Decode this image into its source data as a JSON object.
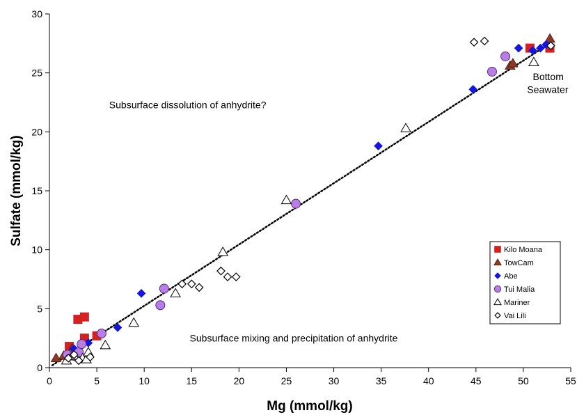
{
  "chart_data": {
    "type": "scatter",
    "xlabel": "Mg (mmol/kg)",
    "ylabel": "Sulfate (mmol/kg)",
    "xlim": [
      0,
      55
    ],
    "ylim": [
      0,
      30
    ],
    "x_ticks": [
      0,
      5,
      10,
      15,
      20,
      25,
      30,
      35,
      40,
      45,
      50,
      55
    ],
    "y_ticks": [
      0,
      5,
      10,
      15,
      20,
      25,
      30
    ],
    "grid": false,
    "legend_position": "bottom-right",
    "annotations": [
      {
        "text": "Subsurface dissolution of anhydrite?",
        "x": 6.3,
        "y": 22.0
      },
      {
        "text": "Subsurface mixing and precipitation of anhydrite",
        "x": 14.8,
        "y": 2.2
      },
      {
        "text": "Bottom",
        "x": 51.0,
        "y": 24.4
      },
      {
        "text": "Seawater",
        "x": 50.4,
        "y": 23.3
      }
    ],
    "trendline": {
      "style": "dotted",
      "x": [
        0.3,
        52.8
      ],
      "y": [
        0.2,
        27.5
      ]
    },
    "series": [
      {
        "name": "Kilo Moana",
        "marker": "square",
        "color": "#d42020",
        "stroke": "#d42020",
        "points": [
          [
            2.1,
            1.8
          ],
          [
            2.5,
            1.0
          ],
          [
            3.0,
            4.1
          ],
          [
            3.7,
            4.3
          ],
          [
            3.7,
            2.5
          ],
          [
            5.0,
            2.7
          ],
          [
            50.7,
            27.1
          ],
          [
            52.8,
            27.1
          ]
        ]
      },
      {
        "name": "TowCam",
        "marker": "triangle",
        "color": "#8b3a2a",
        "stroke": "#5a2010",
        "points": [
          [
            0.7,
            0.8
          ],
          [
            1.5,
            1.0
          ],
          [
            2.4,
            1.6
          ],
          [
            3.2,
            1.2
          ],
          [
            48.6,
            25.6
          ],
          [
            48.9,
            25.8
          ],
          [
            52.8,
            27.9
          ]
        ]
      },
      {
        "name": "Abe",
        "marker": "diamond",
        "color": "#1515e0",
        "stroke": "#1515e0",
        "points": [
          [
            2.6,
            1.6
          ],
          [
            4.1,
            2.1
          ],
          [
            7.2,
            3.4
          ],
          [
            9.7,
            6.3
          ],
          [
            34.7,
            18.8
          ],
          [
            44.7,
            23.6
          ],
          [
            49.5,
            27.1
          ],
          [
            51.0,
            26.9
          ],
          [
            51.8,
            27.1
          ],
          [
            52.4,
            27.4
          ]
        ]
      },
      {
        "name": "Tui Malia",
        "marker": "circle",
        "color": "#b77ee6",
        "stroke": "#5a2a78",
        "points": [
          [
            1.9,
            1.1
          ],
          [
            2.6,
            1.0
          ],
          [
            3.1,
            1.3
          ],
          [
            3.4,
            2.0
          ],
          [
            5.5,
            2.9
          ],
          [
            11.7,
            5.3
          ],
          [
            12.1,
            6.7
          ],
          [
            26.0,
            13.9
          ],
          [
            46.7,
            25.1
          ],
          [
            48.1,
            26.4
          ]
        ]
      },
      {
        "name": "Mariner",
        "marker": "triangle-open",
        "color": "#ffffff",
        "stroke": "#000000",
        "points": [
          [
            1.8,
            0.6
          ],
          [
            2.6,
            1.0
          ],
          [
            3.5,
            0.8
          ],
          [
            3.9,
            0.7
          ],
          [
            4.1,
            1.3
          ],
          [
            5.9,
            1.9
          ],
          [
            8.9,
            3.8
          ],
          [
            13.3,
            6.3
          ],
          [
            18.3,
            9.8
          ],
          [
            25.0,
            14.2
          ],
          [
            37.6,
            20.3
          ],
          [
            51.1,
            25.9
          ]
        ]
      },
      {
        "name": "Vai Lili",
        "marker": "diamond-open",
        "color": "#ffffff",
        "stroke": "#000000",
        "points": [
          [
            2.0,
            0.8
          ],
          [
            2.6,
            1.1
          ],
          [
            3.1,
            0.6
          ],
          [
            4.3,
            0.9
          ],
          [
            14.0,
            7.1
          ],
          [
            15.0,
            7.1
          ],
          [
            15.8,
            6.8
          ],
          [
            18.1,
            8.2
          ],
          [
            18.8,
            7.7
          ],
          [
            19.7,
            7.7
          ],
          [
            44.8,
            27.6
          ],
          [
            45.9,
            27.7
          ],
          [
            52.9,
            27.3
          ]
        ]
      }
    ]
  }
}
